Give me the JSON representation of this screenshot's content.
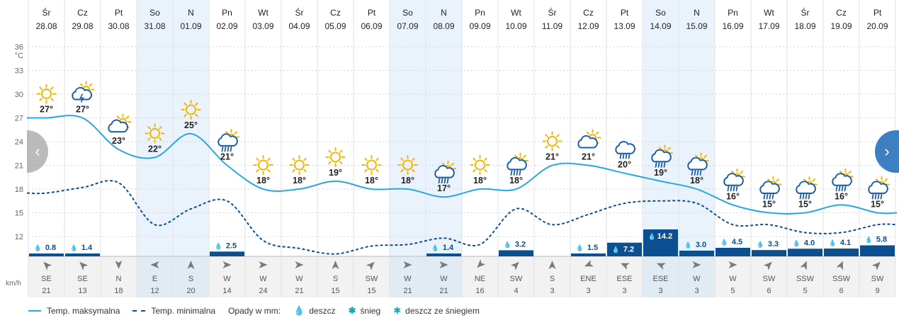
{
  "days": [
    {
      "dow": "Śr",
      "date": "28.08",
      "weekend": false,
      "tmax": 27,
      "tmin": 17.5,
      "icon": "sun",
      "precip": 0.8,
      "wind_dir": "SE",
      "wind_speed": 21
    },
    {
      "dow": "Cz",
      "date": "29.08",
      "weekend": false,
      "tmax": 27,
      "tmin": 18.2,
      "icon": "storm",
      "precip": 1.4,
      "wind_dir": "SE",
      "wind_speed": 13
    },
    {
      "dow": "Pt",
      "date": "30.08",
      "weekend": false,
      "tmax": 23,
      "tmin": 18.8,
      "icon": "cloud-sun",
      "precip": null,
      "wind_dir": "N",
      "wind_speed": 18
    },
    {
      "dow": "So",
      "date": "31.08",
      "weekend": true,
      "tmax": 22,
      "tmin": 13.5,
      "icon": "sun",
      "precip": null,
      "wind_dir": "E",
      "wind_speed": 12
    },
    {
      "dow": "N",
      "date": "01.09",
      "weekend": true,
      "tmax": 25,
      "tmin": 15.5,
      "icon": "sun",
      "precip": null,
      "wind_dir": "S",
      "wind_speed": 20
    },
    {
      "dow": "Pn",
      "date": "02.09",
      "weekend": false,
      "tmax": 21,
      "tmin": 16.5,
      "icon": "rain-sun",
      "precip": 2.5,
      "wind_dir": "W",
      "wind_speed": 14
    },
    {
      "dow": "Wt",
      "date": "03.09",
      "weekend": false,
      "tmax": 18,
      "tmin": 11.5,
      "icon": "sun",
      "precip": null,
      "wind_dir": "W",
      "wind_speed": 24
    },
    {
      "dow": "Śr",
      "date": "04.09",
      "weekend": false,
      "tmax": 18,
      "tmin": 10.5,
      "icon": "sun",
      "precip": null,
      "wind_dir": "W",
      "wind_speed": 21
    },
    {
      "dow": "Cz",
      "date": "05.09",
      "weekend": false,
      "tmax": 19,
      "tmin": 9.8,
      "icon": "sun",
      "precip": null,
      "wind_dir": "S",
      "wind_speed": 15
    },
    {
      "dow": "Pt",
      "date": "06.09",
      "weekend": false,
      "tmax": 18,
      "tmin": 10.8,
      "icon": "sun",
      "precip": null,
      "wind_dir": "SW",
      "wind_speed": 15
    },
    {
      "dow": "So",
      "date": "07.09",
      "weekend": true,
      "tmax": 18,
      "tmin": 11.0,
      "icon": "sun",
      "precip": null,
      "wind_dir": "W",
      "wind_speed": 21
    },
    {
      "dow": "N",
      "date": "08.09",
      "weekend": true,
      "tmax": 17,
      "tmin": 11.8,
      "icon": "rain-sun",
      "precip": 1.4,
      "wind_dir": "W",
      "wind_speed": 21
    },
    {
      "dow": "Pn",
      "date": "09.09",
      "weekend": false,
      "tmax": 18,
      "tmin": 11.0,
      "icon": "sun",
      "precip": null,
      "wind_dir": "NE",
      "wind_speed": 16
    },
    {
      "dow": "Wt",
      "date": "10.09",
      "weekend": false,
      "tmax": 18,
      "tmin": 15.5,
      "icon": "rain-sun",
      "precip": 3.2,
      "wind_dir": "SW",
      "wind_speed": 4
    },
    {
      "dow": "Śr",
      "date": "11.09",
      "weekend": false,
      "tmax": 21,
      "tmin": 13.5,
      "icon": "sun",
      "precip": null,
      "wind_dir": "S",
      "wind_speed": 3
    },
    {
      "dow": "Cz",
      "date": "12.09",
      "weekend": false,
      "tmax": 21,
      "tmin": 14.8,
      "icon": "cloud-sun",
      "precip": 1.5,
      "wind_dir": "ENE",
      "wind_speed": 3
    },
    {
      "dow": "Pt",
      "date": "13.09",
      "weekend": false,
      "tmax": 20,
      "tmin": 16.2,
      "icon": "rain",
      "precip": 7.2,
      "wind_dir": "ESE",
      "wind_speed": 3
    },
    {
      "dow": "So",
      "date": "14.09",
      "weekend": true,
      "tmax": 19,
      "tmin": 16.5,
      "icon": "rain-sun",
      "precip": 14.2,
      "wind_dir": "ESE",
      "wind_speed": 3
    },
    {
      "dow": "N",
      "date": "15.09",
      "weekend": true,
      "tmax": 18,
      "tmin": 16.2,
      "icon": "rain-sun",
      "precip": 3.0,
      "wind_dir": "W",
      "wind_speed": 3
    },
    {
      "dow": "Pn",
      "date": "16.09",
      "weekend": false,
      "tmax": 16,
      "tmin": 13.5,
      "icon": "rain-sun",
      "precip": 4.5,
      "wind_dir": "W",
      "wind_speed": 5
    },
    {
      "dow": "Wt",
      "date": "17.09",
      "weekend": false,
      "tmax": 15,
      "tmin": 13.5,
      "icon": "rain-sun",
      "precip": 3.3,
      "wind_dir": "SW",
      "wind_speed": 6
    },
    {
      "dow": "Śr",
      "date": "18.09",
      "weekend": false,
      "tmax": 15,
      "tmin": 12.5,
      "icon": "rain-sun",
      "precip": 4.0,
      "wind_dir": "SSW",
      "wind_speed": 5
    },
    {
      "dow": "Cz",
      "date": "19.09",
      "weekend": false,
      "tmax": 16,
      "tmin": 12.5,
      "icon": "rain-sun",
      "precip": 4.1,
      "wind_dir": "SSW",
      "wind_speed": 6
    },
    {
      "dow": "Pt",
      "date": "20.09",
      "weekend": false,
      "tmax": 15,
      "tmin": 13.5,
      "icon": "rain-sun",
      "precip": 5.8,
      "wind_dir": "SW",
      "wind_speed": 9
    }
  ],
  "chart_data": {
    "type": "line",
    "categories": [
      "28.08",
      "29.08",
      "30.08",
      "31.08",
      "01.09",
      "02.09",
      "03.09",
      "04.09",
      "05.09",
      "06.09",
      "07.09",
      "08.09",
      "09.09",
      "10.09",
      "11.09",
      "12.09",
      "13.09",
      "14.09",
      "15.09",
      "16.09",
      "17.09",
      "18.09",
      "19.09",
      "20.09"
    ],
    "series": [
      {
        "name": "Temp. maksymalna",
        "values": [
          27,
          27,
          23,
          22,
          25,
          21,
          18,
          18,
          19,
          18,
          18,
          17,
          18,
          18,
          21,
          21,
          20,
          19,
          18,
          16,
          15,
          15,
          16,
          15
        ]
      },
      {
        "name": "Temp. minimalna",
        "values": [
          17.5,
          18.2,
          18.8,
          13.5,
          15.5,
          16.5,
          11.5,
          10.5,
          9.8,
          10.8,
          11.0,
          11.8,
          11.0,
          15.5,
          13.5,
          14.8,
          16.2,
          16.5,
          16.2,
          13.5,
          13.5,
          12.5,
          12.5,
          13.5
        ]
      }
    ],
    "precip_mm": [
      0.8,
      1.4,
      null,
      null,
      null,
      2.5,
      null,
      null,
      null,
      null,
      null,
      1.4,
      null,
      3.2,
      null,
      1.5,
      7.2,
      14.2,
      3.0,
      4.5,
      3.3,
      4.0,
      4.1,
      5.8
    ],
    "yunit": "°C",
    "yticks": [
      12,
      15,
      18,
      21,
      24,
      27,
      30,
      33,
      36
    ],
    "ylim": [
      9.5,
      38.5
    ],
    "grid": true
  },
  "axis": {
    "unit_label": "°C",
    "wind_unit": "km/h"
  },
  "legend": {
    "max_label": "Temp. maksymalna",
    "min_label": "Temp. minimalna",
    "precip_label": "Opady w mm:",
    "rain_label": "deszcz",
    "snow_label": "śnieg",
    "mix_label": "deszcz ze śniegiem"
  },
  "colors": {
    "max_line": "#29a8e0",
    "min_line": "#0b4f91",
    "bar": "#0b4f91",
    "weekend_bg": "#eaf3fb",
    "sun": "#f5b400",
    "cloud": "#1d5ea8"
  },
  "nav": {
    "prev_icon": "chevron-left-icon",
    "next_icon": "chevron-right-icon",
    "prev": "‹",
    "next": "›"
  }
}
